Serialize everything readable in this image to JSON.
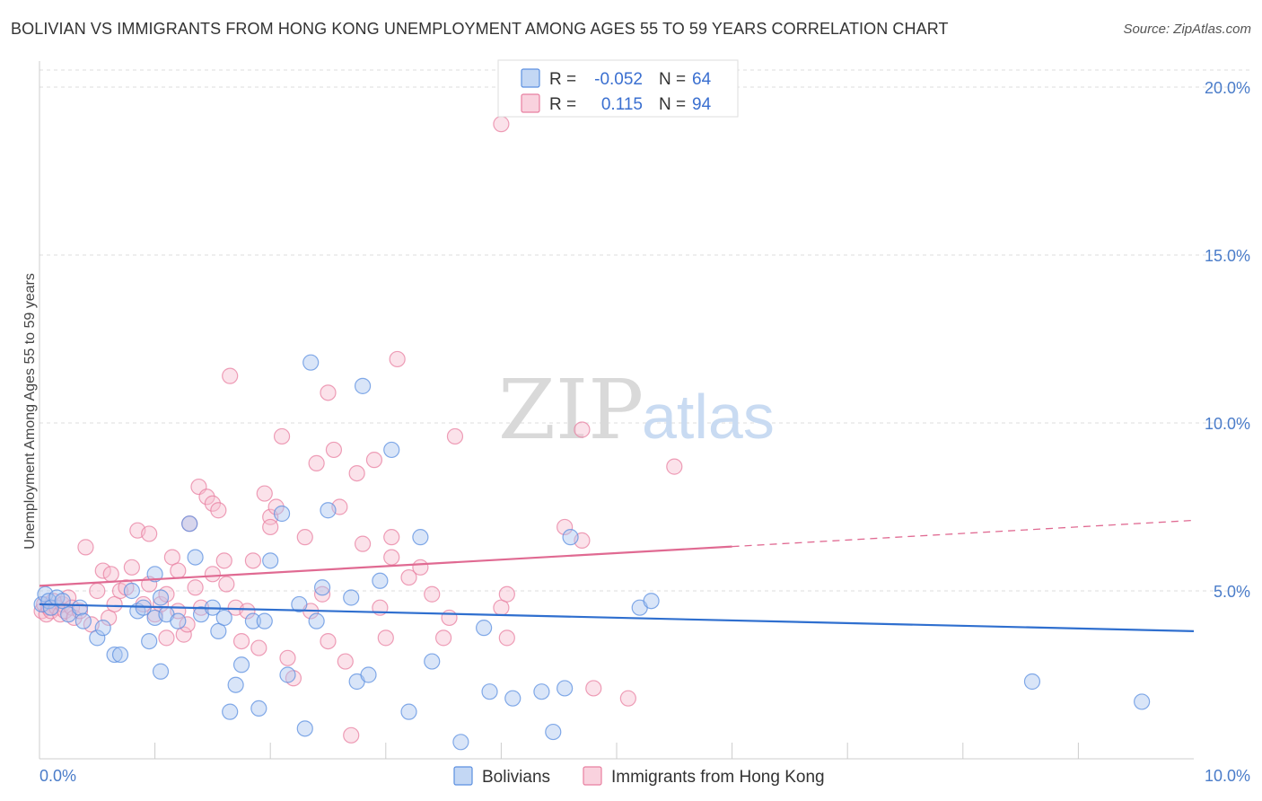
{
  "title": "BOLIVIAN VS IMMIGRANTS FROM HONG KONG UNEMPLOYMENT AMONG AGES 55 TO 59 YEARS CORRELATION CHART",
  "source": "Source: ZipAtlas.com",
  "watermark": {
    "zip": "ZIP",
    "atlas": "atlas"
  },
  "colors": {
    "blue": "#5b8fe0",
    "blue_fill": "#aac6ef",
    "blue_line": "#2f6fcf",
    "pink": "#e87fa0",
    "pink_fill": "#f6bfd0",
    "pink_line": "#e06a92",
    "grid": "#dddddd",
    "axis_text": "#4a7cc9"
  },
  "legend_top": {
    "rows": [
      {
        "r_label": "R =",
        "r_value": "-0.052",
        "n_label": "N =",
        "n_value": "64",
        "series": "blue"
      },
      {
        "r_label": "R =",
        "r_value": "0.115",
        "n_label": "N =",
        "n_value": "94",
        "series": "pink"
      }
    ]
  },
  "chart_data": {
    "type": "scatter",
    "title": "BOLIVIAN VS IMMIGRANTS FROM HONG KONG UNEMPLOYMENT AMONG AGES 55 TO 59 YEARS CORRELATION CHART",
    "xlabel": "",
    "ylabel": "Unemployment Among Ages 55 to 59 years",
    "xlim": [
      0,
      10
    ],
    "ylim": [
      0,
      20
    ],
    "x_ticks": [
      "0.0%",
      "10.0%"
    ],
    "y_ticks": [
      "5.0%",
      "10.0%",
      "15.0%",
      "20.0%"
    ],
    "y_tick_values": [
      5,
      10,
      15,
      20
    ],
    "grid": true,
    "legend_position": "bottom",
    "series": [
      {
        "name": "Bolivians",
        "color": "blue",
        "trend": {
          "x": [
            0,
            10
          ],
          "y": [
            4.6,
            3.8
          ],
          "dashed_from": null
        },
        "points": [
          [
            0.02,
            4.6
          ],
          [
            0.05,
            4.9
          ],
          [
            0.08,
            4.7
          ],
          [
            0.1,
            4.5
          ],
          [
            0.15,
            4.8
          ],
          [
            0.2,
            4.7
          ],
          [
            0.25,
            4.3
          ],
          [
            0.35,
            4.5
          ],
          [
            0.38,
            4.1
          ],
          [
            0.5,
            3.6
          ],
          [
            0.55,
            3.9
          ],
          [
            0.65,
            3.1
          ],
          [
            0.7,
            3.1
          ],
          [
            0.8,
            5.0
          ],
          [
            0.85,
            4.4
          ],
          [
            0.9,
            4.5
          ],
          [
            0.95,
            3.5
          ],
          [
            1.0,
            4.2
          ],
          [
            1.0,
            5.5
          ],
          [
            1.05,
            2.6
          ],
          [
            1.05,
            4.8
          ],
          [
            1.1,
            4.3
          ],
          [
            1.2,
            4.1
          ],
          [
            1.3,
            7.0
          ],
          [
            1.35,
            6.0
          ],
          [
            1.4,
            4.3
          ],
          [
            1.5,
            4.5
          ],
          [
            1.55,
            3.8
          ],
          [
            1.6,
            4.2
          ],
          [
            1.65,
            1.4
          ],
          [
            1.7,
            2.2
          ],
          [
            1.75,
            2.8
          ],
          [
            1.85,
            4.1
          ],
          [
            1.9,
            1.5
          ],
          [
            1.95,
            4.1
          ],
          [
            2.0,
            5.9
          ],
          [
            2.1,
            7.3
          ],
          [
            2.15,
            2.5
          ],
          [
            2.25,
            4.6
          ],
          [
            2.3,
            0.9
          ],
          [
            2.35,
            11.8
          ],
          [
            2.4,
            4.1
          ],
          [
            2.45,
            5.1
          ],
          [
            2.5,
            7.4
          ],
          [
            2.7,
            4.8
          ],
          [
            2.75,
            2.3
          ],
          [
            2.8,
            11.1
          ],
          [
            2.85,
            2.5
          ],
          [
            2.95,
            5.3
          ],
          [
            3.05,
            9.2
          ],
          [
            3.2,
            1.4
          ],
          [
            3.3,
            6.6
          ],
          [
            3.4,
            2.9
          ],
          [
            3.65,
            0.5
          ],
          [
            3.85,
            3.9
          ],
          [
            3.9,
            2.0
          ],
          [
            4.1,
            1.8
          ],
          [
            4.35,
            2.0
          ],
          [
            4.45,
            0.8
          ],
          [
            4.55,
            2.1
          ],
          [
            4.6,
            6.6
          ],
          [
            5.2,
            4.5
          ],
          [
            5.3,
            4.7
          ],
          [
            8.6,
            2.3
          ],
          [
            9.55,
            1.7
          ]
        ]
      },
      {
        "name": "Immigrants from Hong Kong",
        "color": "pink",
        "trend": {
          "x": [
            0,
            10
          ],
          "y": [
            5.15,
            7.1
          ],
          "dashed_from": 6.0
        },
        "points": [
          [
            0.02,
            4.4
          ],
          [
            0.04,
            4.6
          ],
          [
            0.06,
            4.3
          ],
          [
            0.08,
            4.5
          ],
          [
            0.1,
            4.4
          ],
          [
            0.12,
            4.7
          ],
          [
            0.15,
            4.5
          ],
          [
            0.18,
            4.3
          ],
          [
            0.2,
            4.6
          ],
          [
            0.22,
            4.4
          ],
          [
            0.25,
            4.8
          ],
          [
            0.28,
            4.5
          ],
          [
            0.3,
            4.2
          ],
          [
            0.35,
            4.4
          ],
          [
            0.4,
            6.3
          ],
          [
            0.45,
            4.0
          ],
          [
            0.5,
            5.0
          ],
          [
            0.55,
            5.6
          ],
          [
            0.6,
            4.2
          ],
          [
            0.62,
            5.5
          ],
          [
            0.65,
            4.6
          ],
          [
            0.7,
            5.0
          ],
          [
            0.75,
            5.1
          ],
          [
            0.8,
            5.7
          ],
          [
            0.85,
            6.8
          ],
          [
            0.9,
            4.6
          ],
          [
            0.95,
            5.2
          ],
          [
            0.95,
            6.7
          ],
          [
            1.0,
            4.3
          ],
          [
            1.05,
            4.6
          ],
          [
            1.1,
            4.9
          ],
          [
            1.1,
            3.6
          ],
          [
            1.15,
            6.0
          ],
          [
            1.2,
            5.6
          ],
          [
            1.2,
            4.4
          ],
          [
            1.25,
            3.7
          ],
          [
            1.28,
            4.0
          ],
          [
            1.3,
            7.0
          ],
          [
            1.35,
            5.1
          ],
          [
            1.38,
            8.1
          ],
          [
            1.4,
            4.5
          ],
          [
            1.45,
            7.8
          ],
          [
            1.5,
            5.5
          ],
          [
            1.5,
            7.6
          ],
          [
            1.55,
            7.4
          ],
          [
            1.6,
            5.9
          ],
          [
            1.62,
            5.2
          ],
          [
            1.65,
            11.4
          ],
          [
            1.7,
            4.5
          ],
          [
            1.75,
            3.5
          ],
          [
            1.8,
            4.4
          ],
          [
            1.85,
            5.9
          ],
          [
            1.9,
            3.3
          ],
          [
            1.95,
            7.9
          ],
          [
            2.0,
            7.2
          ],
          [
            2.0,
            6.9
          ],
          [
            2.05,
            7.5
          ],
          [
            2.1,
            9.6
          ],
          [
            2.15,
            3.0
          ],
          [
            2.2,
            2.4
          ],
          [
            2.3,
            6.6
          ],
          [
            2.35,
            4.4
          ],
          [
            2.4,
            8.8
          ],
          [
            2.45,
            4.9
          ],
          [
            2.5,
            10.9
          ],
          [
            2.5,
            3.5
          ],
          [
            2.55,
            9.2
          ],
          [
            2.6,
            7.5
          ],
          [
            2.65,
            2.9
          ],
          [
            2.7,
            0.7
          ],
          [
            2.75,
            8.5
          ],
          [
            2.8,
            6.4
          ],
          [
            2.9,
            8.9
          ],
          [
            2.95,
            4.5
          ],
          [
            3.0,
            3.6
          ],
          [
            3.05,
            6.6
          ],
          [
            3.05,
            6.0
          ],
          [
            3.1,
            11.9
          ],
          [
            3.2,
            5.4
          ],
          [
            3.3,
            5.7
          ],
          [
            3.4,
            4.9
          ],
          [
            3.5,
            3.6
          ],
          [
            3.55,
            4.2
          ],
          [
            3.6,
            9.6
          ],
          [
            4.0,
            4.5
          ],
          [
            4.05,
            3.6
          ],
          [
            4.05,
            4.9
          ],
          [
            4.55,
            6.9
          ],
          [
            4.7,
            9.8
          ],
          [
            4.7,
            6.5
          ],
          [
            4.8,
            2.1
          ],
          [
            5.1,
            1.8
          ],
          [
            5.5,
            8.7
          ],
          [
            4.0,
            18.9
          ]
        ]
      }
    ]
  },
  "bottom_legend": [
    {
      "label": "Bolivians",
      "color": "blue"
    },
    {
      "label": "Immigrants from Hong Kong",
      "color": "pink"
    }
  ]
}
